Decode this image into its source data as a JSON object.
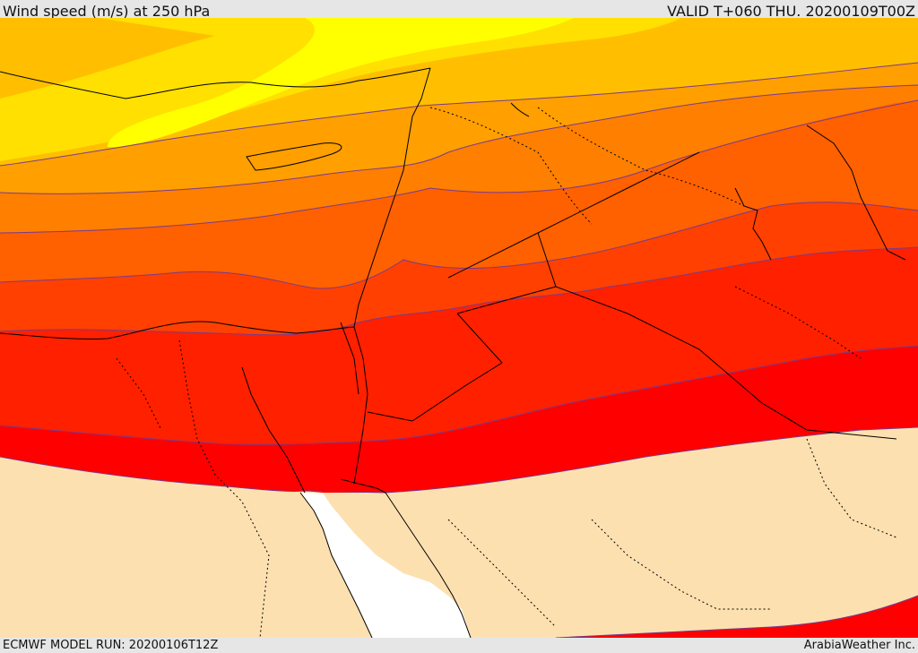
{
  "header": {
    "title": "Wind speed (m/s) at 250 hPa",
    "valid": "VALID T+060 THU. 20200109T00Z"
  },
  "footer": {
    "model_run": "ECMWF MODEL RUN: 20200106T12Z",
    "credit": "ArabiaWeather Inc."
  },
  "map": {
    "field": "wind speed at 250 hPa",
    "colors": {
      "band_yellow": "#ffff00",
      "band_gold": "#ffe000",
      "band_amber": "#ffbf00",
      "band_orange1": "#ff9f00",
      "band_orange2": "#ff7f00",
      "band_orange3": "#ff6000",
      "band_redorange": "#ff4000",
      "band_red1": "#ff2000",
      "band_red2": "#ff0000",
      "below_threshold": "#fde0b0",
      "sea_uncolored": "#ffffff",
      "contour_line": "#7a3a8a",
      "coastline": "#000000"
    }
  }
}
